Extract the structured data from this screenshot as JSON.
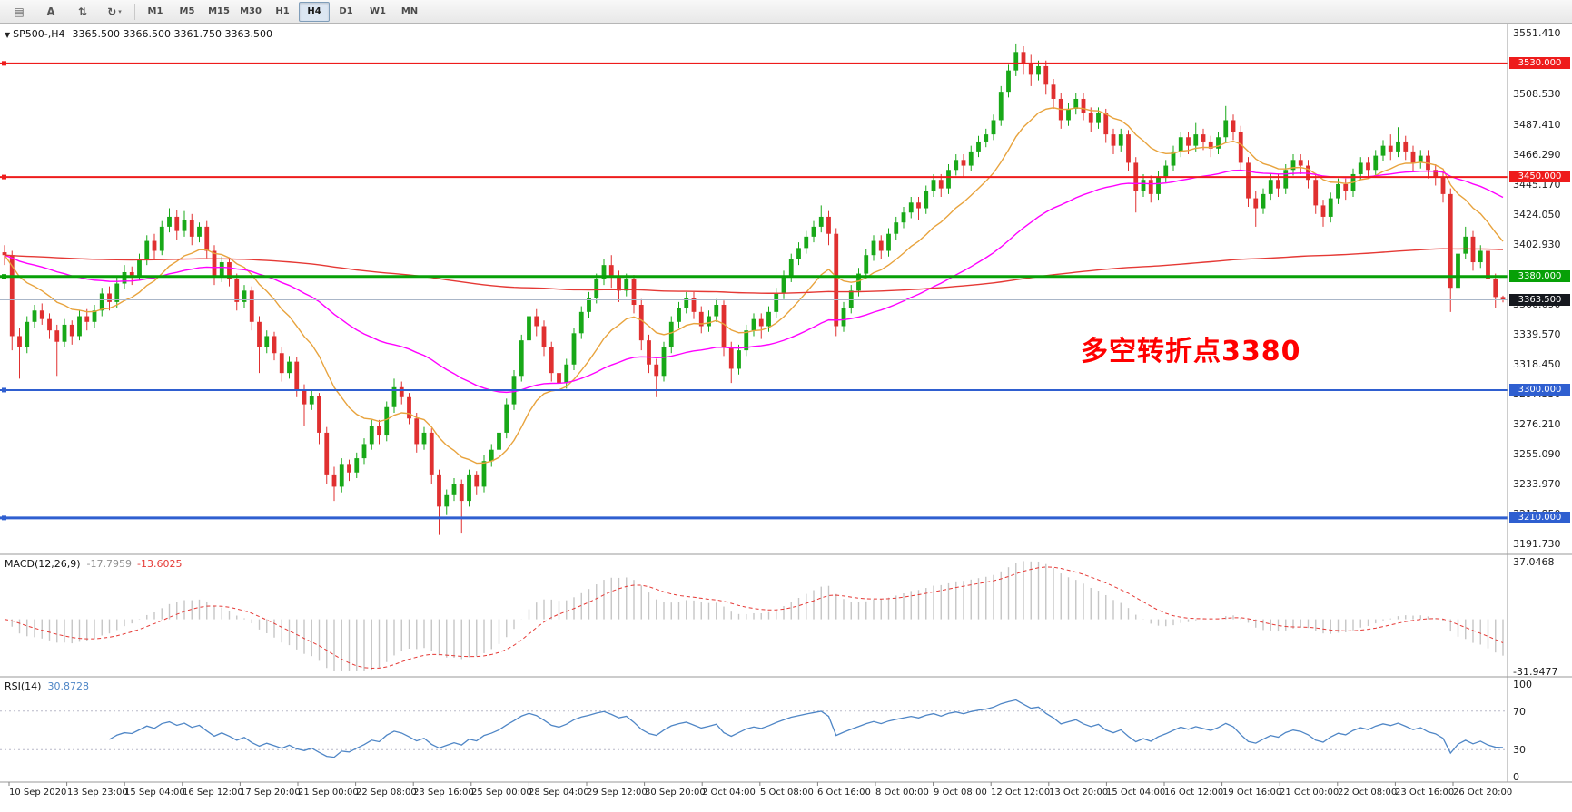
{
  "toolbar": {
    "left_buttons": [
      {
        "name": "chart-list-icon",
        "glyph": "▤"
      },
      {
        "name": "text-cursor-icon",
        "glyph": "A"
      },
      {
        "name": "bar-style-icon",
        "glyph": "⇅"
      },
      {
        "name": "chart-cycle-icon",
        "glyph": "↻",
        "caret": "▾"
      }
    ],
    "timeframes": [
      {
        "label": "M1"
      },
      {
        "label": "M5"
      },
      {
        "label": "M15"
      },
      {
        "label": "M30"
      },
      {
        "label": "H1"
      },
      {
        "label": "H4",
        "active": true
      },
      {
        "label": "D1"
      },
      {
        "label": "W1"
      },
      {
        "label": "MN"
      }
    ]
  },
  "chart_header": {
    "marker": "▼",
    "symbol_period": "SP500-,H4",
    "ohlc": "3365.500 3366.500 3361.750 3363.500"
  },
  "annotation": {
    "text": "多空转折点3380",
    "color": "#ff0000"
  },
  "chart_data": {
    "type": "candlestick",
    "symbol": "SP500-",
    "timeframe": "H4",
    "ylim": [
      3185,
      3558
    ],
    "up_color": "#18a818",
    "down_color": "#e03030",
    "price_axis_labels": [
      "3551.410",
      "3529.650",
      "3508.530",
      "3487.410",
      "3466.290",
      "3445.170",
      "3424.050",
      "3402.930",
      "3381.810",
      "3360.690",
      "3339.570",
      "3318.450",
      "3297.330",
      "3276.210",
      "3255.090",
      "3233.970",
      "3212.850",
      "3191.730"
    ],
    "x_labels": [
      "10 Sep 2020",
      "13 Sep 23:00",
      "15 Sep 04:00",
      "16 Sep 12:00",
      "17 Sep 20:00",
      "21 Sep 00:00",
      "22 Sep 08:00",
      "23 Sep 16:00",
      "25 Sep 00:00",
      "28 Sep 04:00",
      "29 Sep 12:00",
      "30 Sep 20:00",
      "2 Oct 04:00",
      "5 Oct 08:00",
      "6 Oct 16:00",
      "8 Oct 00:00",
      "9 Oct 08:00",
      "12 Oct 12:00",
      "13 Oct 20:00",
      "15 Oct 04:00",
      "16 Oct 12:00",
      "19 Oct 16:00",
      "21 Oct 00:00",
      "22 Oct 08:00",
      "23 Oct 16:00",
      "26 Oct 20:00"
    ],
    "hlines": [
      {
        "price": 3530,
        "label": "3530.000",
        "color": "#ee1c1c",
        "width": 2
      },
      {
        "price": 3450,
        "label": "3450.000",
        "color": "#ee1c1c",
        "width": 2
      },
      {
        "price": 3380,
        "label": "3380.000",
        "color": "#07a007",
        "width": 3
      },
      {
        "price": 3300,
        "label": "3300.000",
        "color": "#2f5fd0",
        "width": 2
      },
      {
        "price": 3210,
        "label": "3210.000",
        "color": "#2f5fd0",
        "width": 3
      }
    ],
    "current_price": {
      "value": 3363.5,
      "label": "3363.500",
      "line_color": "#aab6c8",
      "tag_color": "#15181e"
    },
    "overlays": [
      {
        "name": "ma-fast",
        "period": 14,
        "color": "#e8a33d"
      },
      {
        "name": "ma-medium",
        "period": 55,
        "color": "#ff00ff"
      },
      {
        "name": "ma-slow",
        "period": 400,
        "color": "#e53935"
      }
    ],
    "ohlc": [
      [
        3397,
        3402,
        3388,
        3395
      ],
      [
        3395,
        3398,
        3328,
        3338
      ],
      [
        3338,
        3344,
        3308,
        3330
      ],
      [
        3330,
        3352,
        3326,
        3348
      ],
      [
        3348,
        3360,
        3344,
        3356
      ],
      [
        3356,
        3361,
        3346,
        3350
      ],
      [
        3350,
        3354,
        3336,
        3342
      ],
      [
        3342,
        3346,
        3310,
        3334
      ],
      [
        3334,
        3350,
        3330,
        3346
      ],
      [
        3346,
        3349,
        3332,
        3338
      ],
      [
        3338,
        3356,
        3335,
        3352
      ],
      [
        3352,
        3357,
        3342,
        3348
      ],
      [
        3348,
        3360,
        3344,
        3356
      ],
      [
        3356,
        3372,
        3352,
        3368
      ],
      [
        3368,
        3373,
        3356,
        3362
      ],
      [
        3362,
        3380,
        3358,
        3375
      ],
      [
        3375,
        3388,
        3371,
        3383
      ],
      [
        3383,
        3387,
        3374,
        3380
      ],
      [
        3380,
        3396,
        3377,
        3392
      ],
      [
        3392,
        3409,
        3388,
        3405
      ],
      [
        3405,
        3410,
        3392,
        3398
      ],
      [
        3398,
        3419,
        3395,
        3415
      ],
      [
        3415,
        3428,
        3411,
        3422
      ],
      [
        3422,
        3427,
        3406,
        3412
      ],
      [
        3412,
        3426,
        3408,
        3420
      ],
      [
        3420,
        3424,
        3402,
        3408
      ],
      [
        3408,
        3418,
        3404,
        3415
      ],
      [
        3415,
        3419,
        3393,
        3398
      ],
      [
        3398,
        3402,
        3374,
        3380
      ],
      [
        3380,
        3394,
        3376,
        3390
      ],
      [
        3390,
        3393,
        3373,
        3378
      ],
      [
        3378,
        3382,
        3356,
        3362
      ],
      [
        3362,
        3374,
        3358,
        3370
      ],
      [
        3370,
        3373,
        3342,
        3348
      ],
      [
        3348,
        3352,
        3312,
        3330
      ],
      [
        3330,
        3342,
        3326,
        3338
      ],
      [
        3338,
        3341,
        3321,
        3326
      ],
      [
        3326,
        3330,
        3306,
        3312
      ],
      [
        3312,
        3324,
        3308,
        3320
      ],
      [
        3320,
        3323,
        3295,
        3300
      ],
      [
        3300,
        3304,
        3275,
        3290
      ],
      [
        3290,
        3300,
        3286,
        3296
      ],
      [
        3296,
        3298,
        3262,
        3270
      ],
      [
        3270,
        3274,
        3234,
        3240
      ],
      [
        3240,
        3246,
        3222,
        3232
      ],
      [
        3232,
        3252,
        3228,
        3248
      ],
      [
        3248,
        3251,
        3236,
        3242
      ],
      [
        3242,
        3256,
        3238,
        3252
      ],
      [
        3252,
        3266,
        3248,
        3262
      ],
      [
        3262,
        3279,
        3258,
        3275
      ],
      [
        3275,
        3279,
        3262,
        3268
      ],
      [
        3268,
        3292,
        3264,
        3288
      ],
      [
        3288,
        3308,
        3284,
        3302
      ],
      [
        3302,
        3306,
        3290,
        3295
      ],
      [
        3295,
        3298,
        3276,
        3280
      ],
      [
        3280,
        3284,
        3256,
        3262
      ],
      [
        3262,
        3274,
        3258,
        3270
      ],
      [
        3270,
        3273,
        3234,
        3240
      ],
      [
        3240,
        3244,
        3198,
        3218
      ],
      [
        3218,
        3230,
        3212,
        3226
      ],
      [
        3226,
        3238,
        3222,
        3234
      ],
      [
        3234,
        3237,
        3199,
        3222
      ],
      [
        3222,
        3244,
        3218,
        3240
      ],
      [
        3240,
        3243,
        3226,
        3232
      ],
      [
        3232,
        3254,
        3228,
        3250
      ],
      [
        3250,
        3262,
        3246,
        3258
      ],
      [
        3258,
        3274,
        3254,
        3270
      ],
      [
        3270,
        3294,
        3266,
        3290
      ],
      [
        3290,
        3314,
        3286,
        3310
      ],
      [
        3310,
        3339,
        3306,
        3335
      ],
      [
        3335,
        3356,
        3331,
        3352
      ],
      [
        3352,
        3357,
        3338,
        3345
      ],
      [
        3345,
        3349,
        3324,
        3330
      ],
      [
        3330,
        3334,
        3306,
        3312
      ],
      [
        3312,
        3316,
        3296,
        3305
      ],
      [
        3305,
        3322,
        3301,
        3318
      ],
      [
        3318,
        3344,
        3314,
        3340
      ],
      [
        3340,
        3359,
        3336,
        3355
      ],
      [
        3355,
        3369,
        3351,
        3365
      ],
      [
        3365,
        3382,
        3361,
        3378
      ],
      [
        3378,
        3392,
        3374,
        3388
      ],
      [
        3388,
        3395,
        3372,
        3380
      ],
      [
        3380,
        3384,
        3362,
        3370
      ],
      [
        3370,
        3382,
        3366,
        3378
      ],
      [
        3378,
        3381,
        3354,
        3360
      ],
      [
        3360,
        3364,
        3328,
        3335
      ],
      [
        3335,
        3339,
        3312,
        3318
      ],
      [
        3318,
        3322,
        3295,
        3310
      ],
      [
        3310,
        3334,
        3306,
        3330
      ],
      [
        3330,
        3352,
        3326,
        3348
      ],
      [
        3348,
        3362,
        3344,
        3358
      ],
      [
        3358,
        3369,
        3354,
        3365
      ],
      [
        3365,
        3369,
        3350,
        3355
      ],
      [
        3355,
        3359,
        3340,
        3345
      ],
      [
        3345,
        3356,
        3341,
        3352
      ],
      [
        3352,
        3364,
        3348,
        3360
      ],
      [
        3360,
        3363,
        3324,
        3330
      ],
      [
        3330,
        3334,
        3305,
        3315
      ],
      [
        3315,
        3332,
        3311,
        3328
      ],
      [
        3328,
        3346,
        3324,
        3342
      ],
      [
        3342,
        3354,
        3338,
        3350
      ],
      [
        3350,
        3354,
        3336,
        3345
      ],
      [
        3345,
        3359,
        3341,
        3355
      ],
      [
        3355,
        3372,
        3351,
        3368
      ],
      [
        3368,
        3384,
        3364,
        3380
      ],
      [
        3380,
        3396,
        3376,
        3392
      ],
      [
        3392,
        3404,
        3388,
        3400
      ],
      [
        3400,
        3412,
        3396,
        3408
      ],
      [
        3408,
        3419,
        3404,
        3415
      ],
      [
        3415,
        3430,
        3411,
        3422
      ],
      [
        3422,
        3426,
        3402,
        3410
      ],
      [
        3410,
        3414,
        3338,
        3345
      ],
      [
        3345,
        3362,
        3341,
        3358
      ],
      [
        3358,
        3374,
        3354,
        3370
      ],
      [
        3370,
        3386,
        3366,
        3382
      ],
      [
        3382,
        3399,
        3378,
        3395
      ],
      [
        3395,
        3409,
        3391,
        3405
      ],
      [
        3405,
        3409,
        3392,
        3398
      ],
      [
        3398,
        3414,
        3394,
        3410
      ],
      [
        3410,
        3422,
        3406,
        3418
      ],
      [
        3418,
        3429,
        3414,
        3425
      ],
      [
        3425,
        3436,
        3421,
        3432
      ],
      [
        3432,
        3436,
        3420,
        3428
      ],
      [
        3428,
        3444,
        3424,
        3440
      ],
      [
        3440,
        3452,
        3436,
        3448
      ],
      [
        3448,
        3452,
        3436,
        3442
      ],
      [
        3442,
        3459,
        3438,
        3455
      ],
      [
        3455,
        3466,
        3451,
        3462
      ],
      [
        3462,
        3466,
        3450,
        3458
      ],
      [
        3458,
        3472,
        3454,
        3468
      ],
      [
        3468,
        3479,
        3464,
        3475
      ],
      [
        3475,
        3484,
        3471,
        3480
      ],
      [
        3480,
        3494,
        3476,
        3490
      ],
      [
        3490,
        3514,
        3486,
        3510
      ],
      [
        3510,
        3529,
        3506,
        3525
      ],
      [
        3525,
        3544,
        3521,
        3538
      ],
      [
        3538,
        3542,
        3522,
        3530
      ],
      [
        3530,
        3536,
        3514,
        3522
      ],
      [
        3522,
        3532,
        3518,
        3528
      ],
      [
        3528,
        3532,
        3508,
        3515
      ],
      [
        3515,
        3519,
        3498,
        3505
      ],
      [
        3505,
        3509,
        3484,
        3490
      ],
      [
        3490,
        3502,
        3486,
        3498
      ],
      [
        3498,
        3509,
        3494,
        3505
      ],
      [
        3505,
        3509,
        3490,
        3495
      ],
      [
        3495,
        3499,
        3482,
        3488
      ],
      [
        3488,
        3499,
        3484,
        3495
      ],
      [
        3495,
        3498,
        3474,
        3480
      ],
      [
        3480,
        3484,
        3466,
        3472
      ],
      [
        3472,
        3484,
        3468,
        3480
      ],
      [
        3480,
        3483,
        3454,
        3460
      ],
      [
        3460,
        3464,
        3425,
        3440
      ],
      [
        3440,
        3452,
        3436,
        3448
      ],
      [
        3448,
        3451,
        3432,
        3438
      ],
      [
        3438,
        3454,
        3434,
        3450
      ],
      [
        3450,
        3462,
        3446,
        3458
      ],
      [
        3458,
        3472,
        3454,
        3468
      ],
      [
        3468,
        3482,
        3464,
        3478
      ],
      [
        3478,
        3482,
        3466,
        3472
      ],
      [
        3472,
        3488,
        3468,
        3480
      ],
      [
        3480,
        3484,
        3469,
        3475
      ],
      [
        3475,
        3479,
        3464,
        3470
      ],
      [
        3470,
        3482,
        3466,
        3478
      ],
      [
        3478,
        3500,
        3474,
        3490
      ],
      [
        3490,
        3494,
        3476,
        3482
      ],
      [
        3482,
        3486,
        3454,
        3460
      ],
      [
        3460,
        3464,
        3429,
        3435
      ],
      [
        3435,
        3440,
        3415,
        3428
      ],
      [
        3428,
        3442,
        3424,
        3438
      ],
      [
        3438,
        3452,
        3434,
        3448
      ],
      [
        3448,
        3452,
        3436,
        3442
      ],
      [
        3442,
        3459,
        3438,
        3455
      ],
      [
        3455,
        3466,
        3451,
        3462
      ],
      [
        3462,
        3466,
        3452,
        3458
      ],
      [
        3458,
        3462,
        3442,
        3448
      ],
      [
        3448,
        3452,
        3424,
        3430
      ],
      [
        3430,
        3434,
        3415,
        3422
      ],
      [
        3422,
        3439,
        3418,
        3435
      ],
      [
        3435,
        3449,
        3431,
        3445
      ],
      [
        3445,
        3449,
        3434,
        3440
      ],
      [
        3440,
        3456,
        3436,
        3452
      ],
      [
        3452,
        3464,
        3448,
        3460
      ],
      [
        3460,
        3464,
        3449,
        3455
      ],
      [
        3455,
        3469,
        3451,
        3465
      ],
      [
        3465,
        3476,
        3461,
        3472
      ],
      [
        3472,
        3480,
        3462,
        3468
      ],
      [
        3468,
        3485,
        3464,
        3475
      ],
      [
        3475,
        3479,
        3462,
        3468
      ],
      [
        3468,
        3472,
        3454,
        3460
      ],
      [
        3460,
        3469,
        3456,
        3465
      ],
      [
        3465,
        3469,
        3449,
        3455
      ],
      [
        3455,
        3459,
        3444,
        3450
      ],
      [
        3450,
        3454,
        3432,
        3438
      ],
      [
        3438,
        3442,
        3355,
        3372
      ],
      [
        3372,
        3400,
        3368,
        3396
      ],
      [
        3396,
        3415,
        3392,
        3408
      ],
      [
        3408,
        3412,
        3384,
        3390
      ],
      [
        3390,
        3402,
        3386,
        3398
      ],
      [
        3398,
        3401,
        3372,
        3378
      ],
      [
        3378,
        3382,
        3358,
        3365.5
      ],
      [
        3365.5,
        3366.5,
        3361.75,
        3363.5
      ]
    ],
    "indicators": {
      "macd": {
        "label": "MACD(12,26,9)",
        "value_main": "-17.7959",
        "value_signal": "-13.6025",
        "fast": 12,
        "slow": 26,
        "signal": 9,
        "axis_labels": [
          "37.0468",
          "-31.9477"
        ],
        "range": [
          37.0468,
          -31.9477
        ],
        "hist_color": "#c6c6c6",
        "signal_color": "#e53935"
      },
      "rsi": {
        "label": "RSI(14)",
        "value": "30.8728",
        "period": 14,
        "axis_labels": [
          100,
          70,
          30,
          0
        ],
        "levels": [
          70,
          30
        ],
        "color": "#4f86c6"
      }
    }
  }
}
